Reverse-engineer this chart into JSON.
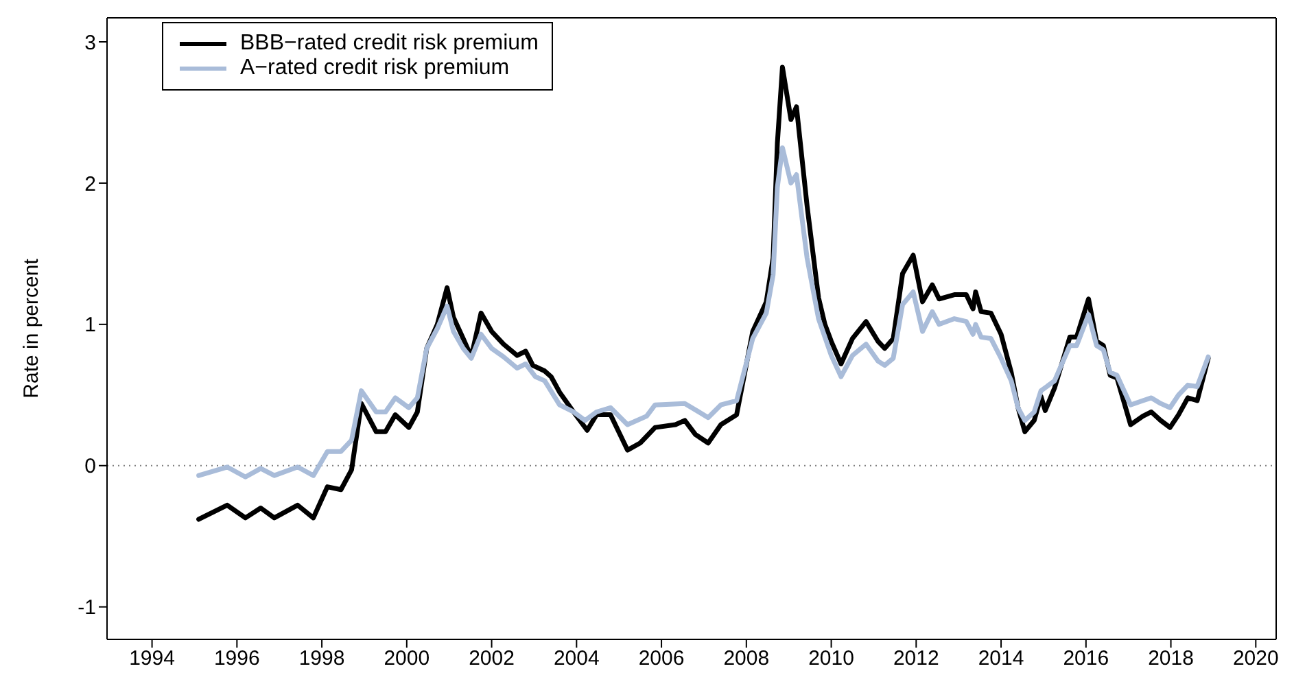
{
  "chart_data": {
    "type": "line",
    "ylabel": "Rate in percent",
    "xlim": [
      1992.94,
      2020.48
    ],
    "ylim": [
      -1.23,
      3.17
    ],
    "xticks": [
      1994,
      1996,
      1998,
      2000,
      2002,
      2004,
      2006,
      2008,
      2010,
      2012,
      2014,
      2016,
      2018,
      2020
    ],
    "yticks": [
      -1,
      0,
      1,
      2,
      3
    ],
    "legend": "top left",
    "marker": "none",
    "line_style": "solid",
    "ref_lines": [
      {
        "axis": "y",
        "value": 0,
        "color": "#808080",
        "line_style": "dotted"
      }
    ],
    "series": [
      {
        "name": "BBB−rated credit risk premium",
        "color": "#000000",
        "x": [
          1995.1,
          1995.77,
          1996.2,
          1996.56,
          1996.88,
          1997.43,
          1997.8,
          1998.13,
          1998.45,
          1998.7,
          1998.93,
          1999.28,
          1999.5,
          1999.73,
          2000.05,
          2000.25,
          2000.47,
          2000.72,
          2000.95,
          2001.1,
          2001.33,
          2001.52,
          2001.75,
          2002.0,
          2002.28,
          2002.6,
          2002.8,
          2002.97,
          2003.25,
          2003.4,
          2003.6,
          2003.93,
          2004.25,
          2004.47,
          2004.8,
          2005.2,
          2005.5,
          2005.85,
          2006.33,
          2006.55,
          2006.8,
          2007.1,
          2007.4,
          2007.77,
          2008.15,
          2008.47,
          2008.63,
          2008.73,
          2008.85,
          2009.05,
          2009.18,
          2009.43,
          2009.7,
          2009.85,
          2010.0,
          2010.23,
          2010.5,
          2010.82,
          2011.1,
          2011.26,
          2011.46,
          2011.68,
          2011.93,
          2012.15,
          2012.38,
          2012.54,
          2012.9,
          2013.18,
          2013.34,
          2013.4,
          2013.53,
          2013.76,
          2014.0,
          2014.24,
          2014.4,
          2014.56,
          2014.78,
          2014.94,
          2015.04,
          2015.26,
          2015.62,
          2015.78,
          2016.06,
          2016.25,
          2016.41,
          2016.57,
          2016.73,
          2017.05,
          2017.34,
          2017.54,
          2017.76,
          2017.98,
          2018.18,
          2018.4,
          2018.62,
          2018.88
        ],
        "values": [
          -0.38,
          -0.28,
          -0.37,
          -0.3,
          -0.37,
          -0.28,
          -0.37,
          -0.15,
          -0.17,
          -0.03,
          0.44,
          0.24,
          0.24,
          0.36,
          0.27,
          0.38,
          0.83,
          1.0,
          1.26,
          1.05,
          0.9,
          0.77,
          1.08,
          0.95,
          0.86,
          0.78,
          0.81,
          0.71,
          0.67,
          0.63,
          0.52,
          0.38,
          0.25,
          0.36,
          0.36,
          0.11,
          0.16,
          0.27,
          0.29,
          0.32,
          0.22,
          0.16,
          0.29,
          0.36,
          0.95,
          1.16,
          1.47,
          2.28,
          2.82,
          2.45,
          2.54,
          1.84,
          1.19,
          1.0,
          0.88,
          0.72,
          0.9,
          1.02,
          0.88,
          0.83,
          0.9,
          1.36,
          1.49,
          1.16,
          1.28,
          1.18,
          1.21,
          1.21,
          1.11,
          1.23,
          1.09,
          1.08,
          0.93,
          0.66,
          0.41,
          0.24,
          0.32,
          0.49,
          0.39,
          0.55,
          0.91,
          0.91,
          1.18,
          0.88,
          0.85,
          0.64,
          0.62,
          0.29,
          0.35,
          0.38,
          0.32,
          0.27,
          0.36,
          0.48,
          0.46,
          0.76
        ]
      },
      {
        "name": "A−rated credit risk premium",
        "color": "#a9bcd9",
        "x": [
          1995.1,
          1995.77,
          1996.2,
          1996.56,
          1996.88,
          1997.43,
          1997.8,
          1998.13,
          1998.45,
          1998.7,
          1998.93,
          1999.28,
          1999.5,
          1999.73,
          2000.05,
          2000.25,
          2000.47,
          2000.72,
          2000.95,
          2001.1,
          2001.33,
          2001.52,
          2001.75,
          2002.0,
          2002.28,
          2002.6,
          2002.8,
          2003.03,
          2003.25,
          2003.6,
          2003.93,
          2004.2,
          2004.47,
          2004.8,
          2005.2,
          2005.65,
          2005.85,
          2006.55,
          2007.1,
          2007.4,
          2007.77,
          2008.15,
          2008.47,
          2008.63,
          2008.73,
          2008.85,
          2009.05,
          2009.18,
          2009.43,
          2009.7,
          2009.85,
          2010.0,
          2010.23,
          2010.5,
          2010.82,
          2011.1,
          2011.26,
          2011.46,
          2011.68,
          2011.93,
          2012.15,
          2012.38,
          2012.54,
          2012.9,
          2013.18,
          2013.34,
          2013.4,
          2013.53,
          2013.76,
          2014.0,
          2014.24,
          2014.4,
          2014.56,
          2014.78,
          2014.94,
          2015.26,
          2015.62,
          2015.78,
          2016.06,
          2016.25,
          2016.41,
          2016.57,
          2016.73,
          2017.05,
          2017.34,
          2017.54,
          2017.76,
          2017.98,
          2018.18,
          2018.4,
          2018.62,
          2018.88
        ],
        "values": [
          -0.07,
          -0.01,
          -0.08,
          -0.02,
          -0.07,
          -0.01,
          -0.07,
          0.1,
          0.1,
          0.18,
          0.53,
          0.38,
          0.38,
          0.48,
          0.41,
          0.48,
          0.83,
          0.97,
          1.13,
          0.95,
          0.83,
          0.76,
          0.93,
          0.83,
          0.77,
          0.69,
          0.72,
          0.63,
          0.6,
          0.43,
          0.38,
          0.32,
          0.38,
          0.41,
          0.29,
          0.35,
          0.43,
          0.44,
          0.34,
          0.43,
          0.46,
          0.9,
          1.08,
          1.35,
          1.97,
          2.25,
          2.0,
          2.06,
          1.47,
          1.04,
          0.91,
          0.78,
          0.63,
          0.78,
          0.86,
          0.74,
          0.71,
          0.76,
          1.14,
          1.23,
          0.95,
          1.09,
          1.0,
          1.04,
          1.02,
          0.93,
          1.0,
          0.91,
          0.9,
          0.76,
          0.6,
          0.41,
          0.32,
          0.38,
          0.53,
          0.6,
          0.85,
          0.85,
          1.07,
          0.85,
          0.82,
          0.66,
          0.64,
          0.43,
          0.46,
          0.48,
          0.44,
          0.41,
          0.5,
          0.57,
          0.56,
          0.77
        ]
      }
    ]
  }
}
